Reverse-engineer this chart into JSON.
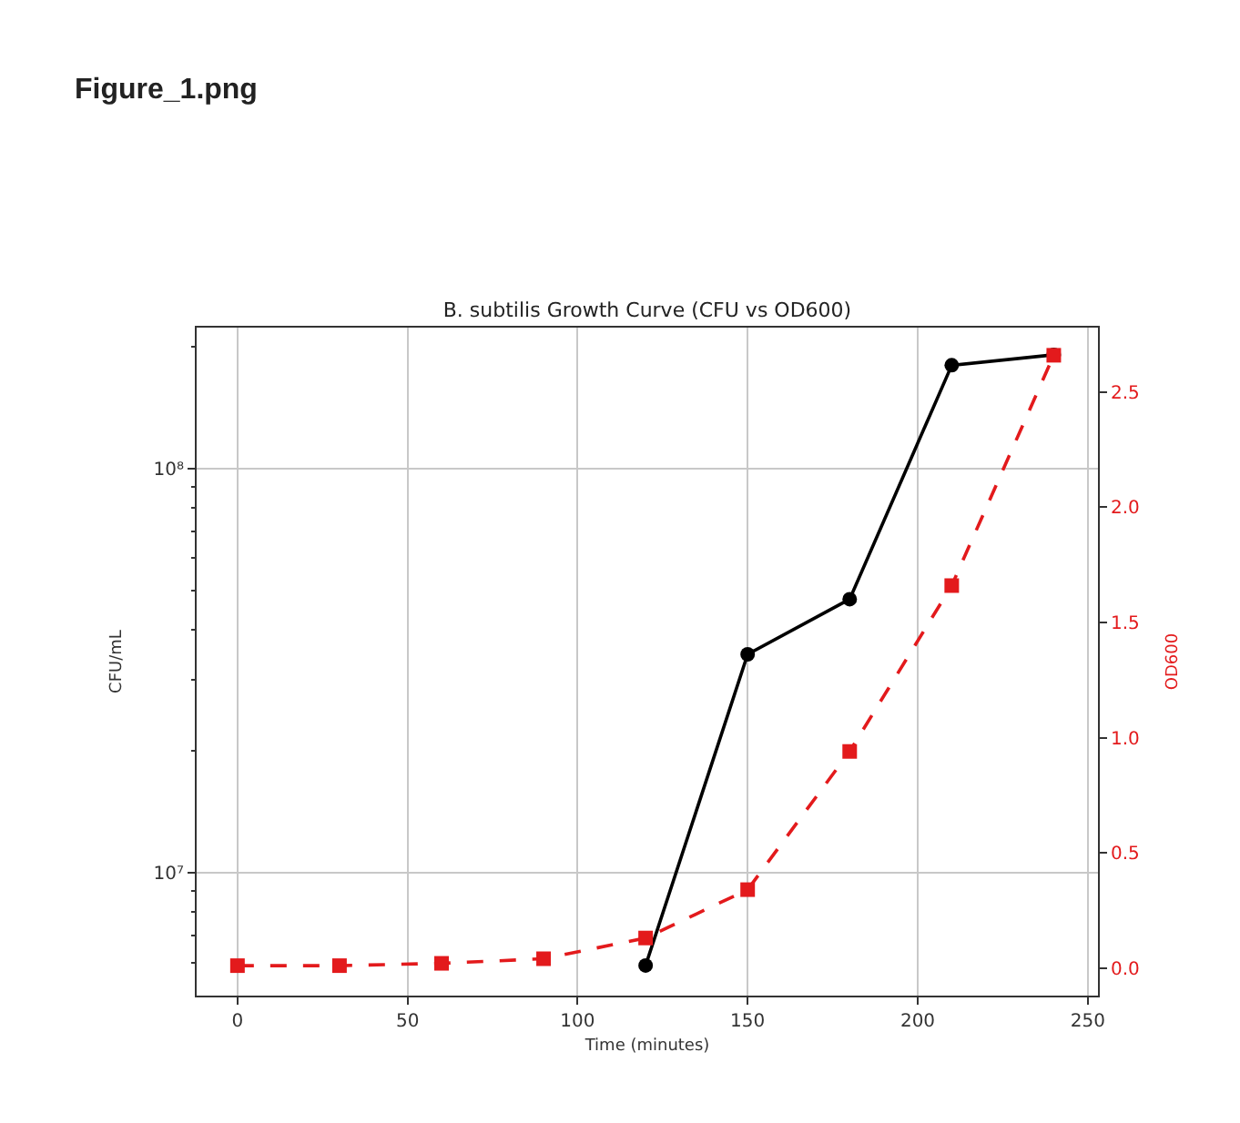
{
  "chart_data": {
    "type": "line",
    "title": "B. subtilis Growth Curve (CFU vs OD600)",
    "xlabel": "Time (minutes)",
    "ylabel": "CFU/mL",
    "y2label": "OD600",
    "annotations": [
      "Figure_1.png"
    ],
    "series": [
      {
        "name": null,
        "color": "#000000",
        "marker": "circle",
        "line_style": "solid",
        "x": [
          120,
          150,
          180,
          210,
          240
        ],
        "values": [
          5900000,
          34700000,
          47500000,
          180000000,
          191000000
        ]
      },
      {
        "name": null,
        "axis": "y2",
        "color": "#e31a1c",
        "marker": "square",
        "line_style": "dashed",
        "x": [
          0,
          30,
          60,
          90,
          120,
          150,
          180,
          210,
          240
        ],
        "values": [
          0.01,
          0.01,
          0.02,
          0.04,
          0.13,
          0.34,
          0.94,
          1.66,
          2.66
        ]
      }
    ],
    "log": "y",
    "grid": true,
    "xlim": [
      -12,
      253
    ],
    "xticks": [
      0,
      50,
      100,
      150,
      200,
      250
    ],
    "ylim": [
      4970000,
      223000000
    ],
    "yticks": [
      {
        "value": 10000000,
        "label": "10⁷"
      },
      {
        "value": 100000000,
        "label": "10⁸"
      },
      {
        "value": 6000000,
        "label": null
      },
      {
        "value": 7000000,
        "label": null
      },
      {
        "value": 8000000,
        "label": null
      },
      {
        "value": 9000000,
        "label": null
      },
      {
        "value": 20000000,
        "label": null
      },
      {
        "value": 30000000,
        "label": null
      },
      {
        "value": 40000000,
        "label": null
      },
      {
        "value": 50000000,
        "label": null
      },
      {
        "value": 60000000,
        "label": null
      },
      {
        "value": 70000000,
        "label": null
      },
      {
        "value": 80000000,
        "label": null
      },
      {
        "value": 90000000,
        "label": null
      },
      {
        "value": 200000000,
        "label": null
      }
    ],
    "y2lim": [
      -0.12,
      2.78
    ],
    "y2ticks": [
      {
        "value": 0,
        "label": "0.0"
      },
      {
        "value": 0.5,
        "label": "0.5"
      },
      {
        "value": 1,
        "label": "1.0"
      },
      {
        "value": 1.5,
        "label": "1.5"
      },
      {
        "value": 2,
        "label": "2.0"
      },
      {
        "value": 2.5,
        "label": "2.5"
      }
    ]
  }
}
